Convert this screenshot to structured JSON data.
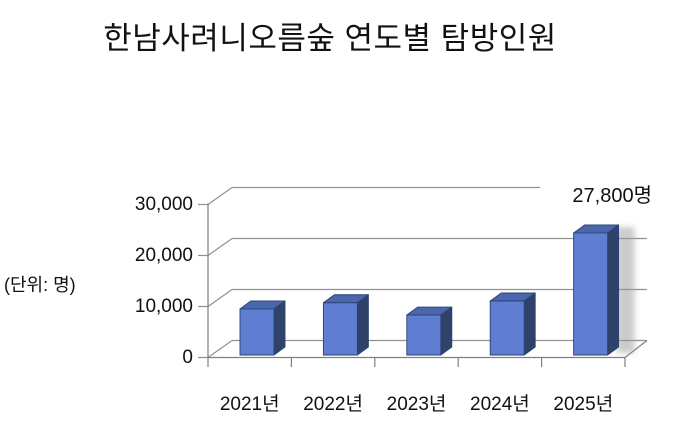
{
  "title": "한남사려니오름숲 연도별 탐방인원",
  "unit_label": "(단위: 명)",
  "chart_data": {
    "type": "bar",
    "variant": "3d-column",
    "title": "한남사려니오름숲 연도별 탐방인원",
    "unit": "명",
    "categories": [
      "2021년",
      "2022년",
      "2023년",
      "2024년",
      "2025년"
    ],
    "values": [
      10500,
      11900,
      9100,
      12300,
      27800
    ],
    "data_labels": [
      "",
      "",
      "",
      "",
      "27,800명"
    ],
    "yticks": [
      0,
      10000,
      20000,
      30000
    ],
    "yticklabels": [
      "0",
      "10,000",
      "20,000",
      "30,000"
    ],
    "ylim": [
      0,
      30000
    ],
    "grid": true,
    "legend": false,
    "colors": {
      "bar_front": "#5F7ED2",
      "bar_top": "#4A66AC",
      "bar_side": "#2F4269",
      "bar_edge": "#2B4273",
      "gridline": "#919191",
      "axis": "#7F7F7F",
      "shadow": "#999999",
      "text": "#111111"
    }
  }
}
